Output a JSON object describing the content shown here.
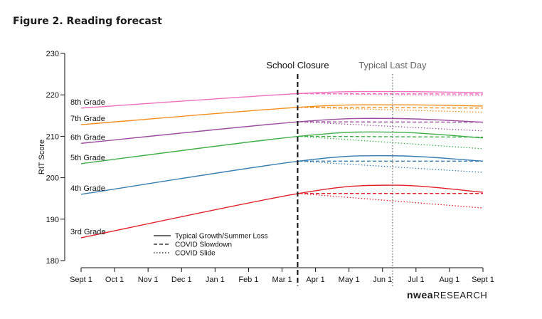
{
  "figure_title": "Figure 2. Reading forecast",
  "logo": {
    "mark": "nwea",
    "text": "RESEARCH"
  },
  "chart_data": {
    "type": "line",
    "title": "",
    "xlabel": "",
    "ylabel": "RIT Score",
    "ylim": [
      180,
      230
    ],
    "yticks": [
      180,
      190,
      200,
      210,
      220,
      230
    ],
    "xticks": [
      "Sept 1",
      "Oct 1",
      "Nov 1",
      "Dec 1",
      "Jan 1",
      "Feb 1",
      "Mar 1",
      "Apr 1",
      "May 1",
      "Jun 1",
      "Jul 1",
      "Aug 1",
      "Sept 1"
    ],
    "grid": false,
    "events": [
      {
        "label": "School Closure",
        "x": "Mar 15",
        "style": "dashed",
        "color": "#111111"
      },
      {
        "label": "Typical Last Day",
        "x": "Jun 10",
        "style": "dotted",
        "color": "#666666"
      }
    ],
    "legend": {
      "position": "bottom-left",
      "items": [
        {
          "label": "Typical Growth/Summer Loss",
          "dash": "solid"
        },
        {
          "label": "COVID Slowdown",
          "dash": "dashed"
        },
        {
          "label": "COVID Slide",
          "dash": "dotted"
        }
      ]
    },
    "series": [
      {
        "name": "8th Grade",
        "color": "#ee6fbd",
        "typical": [
          [
            0,
            216.8
          ],
          [
            6.5,
            220.3
          ],
          [
            9.3,
            220.8
          ],
          [
            12,
            220.5
          ]
        ],
        "slowdown": [
          [
            6.5,
            220.3
          ],
          [
            12,
            220.2
          ]
        ],
        "slide": [
          [
            6.5,
            220.3
          ],
          [
            12,
            219.8
          ]
        ]
      },
      {
        "name": "7th Grade",
        "color": "#f28e1c",
        "typical": [
          [
            0,
            212.8
          ],
          [
            6.5,
            217.0
          ],
          [
            9.3,
            217.6
          ],
          [
            12,
            217.3
          ]
        ],
        "slowdown": [
          [
            6.5,
            217.0
          ],
          [
            12,
            216.8
          ]
        ],
        "slide": [
          [
            6.5,
            217.0
          ],
          [
            12,
            215.8
          ]
        ]
      },
      {
        "name": "6th Grade",
        "color": "#9b4f9e",
        "typical": [
          [
            0,
            208.3
          ],
          [
            6.5,
            213.5
          ],
          [
            9.3,
            214.3
          ],
          [
            12,
            213.4
          ]
        ],
        "slowdown": [
          [
            6.5,
            213.5
          ],
          [
            12,
            213.4
          ]
        ],
        "slide": [
          [
            6.5,
            213.5
          ],
          [
            12,
            211.3
          ]
        ]
      },
      {
        "name": "5th Grade",
        "color": "#3fae49",
        "typical": [
          [
            0,
            203.4
          ],
          [
            6.5,
            210.0
          ],
          [
            9.3,
            211.0
          ],
          [
            12,
            209.6
          ]
        ],
        "slowdown": [
          [
            6.5,
            210.0
          ],
          [
            12,
            209.8
          ]
        ],
        "slide": [
          [
            6.5,
            210.0
          ],
          [
            12,
            207.0
          ]
        ]
      },
      {
        "name": "4th Grade",
        "color": "#3a7fb0",
        "typical": [
          [
            0,
            196.0
          ],
          [
            6.5,
            204.0
          ],
          [
            9.3,
            205.3
          ],
          [
            12,
            204.0
          ]
        ],
        "slowdown": [
          [
            6.5,
            204.0
          ],
          [
            12,
            204.0
          ]
        ],
        "slide": [
          [
            6.5,
            204.0
          ],
          [
            12,
            201.3
          ]
        ]
      },
      {
        "name": "3rd Grade",
        "color": "#e0202a",
        "typical": [
          [
            0,
            185.5
          ],
          [
            6.5,
            196.2
          ],
          [
            9.3,
            198.2
          ],
          [
            12,
            196.5
          ]
        ],
        "slowdown": [
          [
            6.5,
            196.2
          ],
          [
            12,
            196.2
          ]
        ],
        "slide": [
          [
            6.5,
            196.2
          ],
          [
            12,
            192.7
          ]
        ]
      }
    ]
  }
}
